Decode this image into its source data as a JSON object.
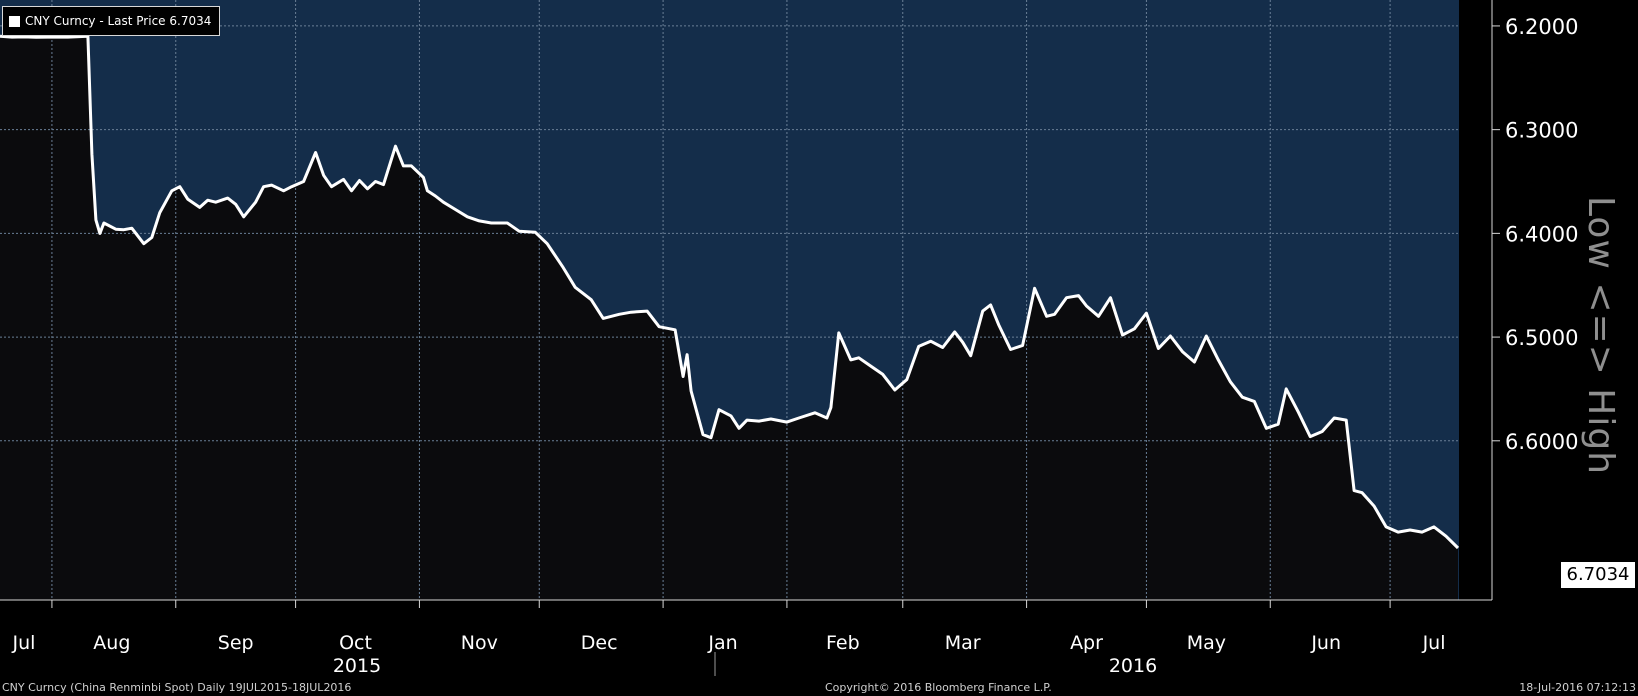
{
  "legend": {
    "series_name": "CNY Curncy",
    "label_text": "CNY Curncy - Last Price 6.7034"
  },
  "last_price_tag": "6.7034",
  "side_label": "Low <=> High",
  "footer": {
    "left": "CNY Curncy (China Renminbi Spot)  Daily 19JUL2015-18JUL2016",
    "center": "Copyright© 2016 Bloomberg Finance L.P.",
    "right": "18-Jul-2016 07:12:13"
  },
  "colors": {
    "background": "#000000",
    "upper_fill": "#142d4a",
    "lower_fill": "#0b0b0d",
    "line": "#ffffff",
    "grid": "#6a7f96",
    "axis_text": "#ffffff"
  },
  "chart_data": {
    "type": "line",
    "title": "",
    "xlabel": "",
    "ylabel": "",
    "y_inverted": true,
    "ylim": [
      6.175,
      6.7535
    ],
    "yticks": [
      "6.2000",
      "6.3000",
      "6.4000",
      "6.5000",
      "6.6000"
    ],
    "xticks": [
      "Jul",
      "Aug",
      "Sep",
      "Oct",
      "Nov",
      "Dec",
      "Jan",
      "Feb",
      "Mar",
      "Apr",
      "May",
      "Jun",
      "Jul"
    ],
    "year_labels": [
      "2015",
      "2016"
    ],
    "grid": true,
    "series": [
      {
        "name": "CNY Curncy",
        "x": [
          "2015-07-19",
          "2015-07-22",
          "2015-07-25",
          "2015-07-28",
          "2015-07-31",
          "2015-08-05",
          "2015-08-10",
          "2015-08-11",
          "2015-08-12",
          "2015-08-13",
          "2015-08-14",
          "2015-08-17",
          "2015-08-19",
          "2015-08-21",
          "2015-08-24",
          "2015-08-26",
          "2015-08-28",
          "2015-08-31",
          "2015-09-02",
          "2015-09-04",
          "2015-09-07",
          "2015-09-09",
          "2015-09-11",
          "2015-09-14",
          "2015-09-16",
          "2015-09-18",
          "2015-09-21",
          "2015-09-23",
          "2015-09-25",
          "2015-09-28",
          "2015-09-30",
          "2015-10-03",
          "2015-10-06",
          "2015-10-08",
          "2015-10-10",
          "2015-10-13",
          "2015-10-15",
          "2015-10-17",
          "2015-10-19",
          "2015-10-21",
          "2015-10-23",
          "2015-10-26",
          "2015-10-28",
          "2015-10-30",
          "2015-11-02",
          "2015-11-03",
          "2015-11-05",
          "2015-11-07",
          "2015-11-10",
          "2015-11-13",
          "2015-11-16",
          "2015-11-19",
          "2015-11-23",
          "2015-11-26",
          "2015-11-30",
          "2015-12-03",
          "2015-12-07",
          "2015-12-10",
          "2015-12-14",
          "2015-12-17",
          "2015-12-21",
          "2015-12-24",
          "2015-12-28",
          "2015-12-31",
          "2016-01-04",
          "2016-01-06",
          "2016-01-07",
          "2016-01-08",
          "2016-01-11",
          "2016-01-13",
          "2016-01-15",
          "2016-01-18",
          "2016-01-20",
          "2016-01-22",
          "2016-01-25",
          "2016-01-28",
          "2016-02-01",
          "2016-02-04",
          "2016-02-08",
          "2016-02-11",
          "2016-02-12",
          "2016-02-14",
          "2016-02-17",
          "2016-02-19",
          "2016-02-22",
          "2016-02-25",
          "2016-02-28",
          "2016-03-02",
          "2016-03-05",
          "2016-03-08",
          "2016-03-11",
          "2016-03-14",
          "2016-03-16",
          "2016-03-18",
          "2016-03-21",
          "2016-03-23",
          "2016-03-25",
          "2016-03-28",
          "2016-03-31",
          "2016-04-03",
          "2016-04-06",
          "2016-04-08",
          "2016-04-11",
          "2016-04-14",
          "2016-04-16",
          "2016-04-19",
          "2016-04-22",
          "2016-04-25",
          "2016-04-28",
          "2016-05-01",
          "2016-05-04",
          "2016-05-07",
          "2016-05-10",
          "2016-05-13",
          "2016-05-16",
          "2016-05-19",
          "2016-05-22",
          "2016-05-25",
          "2016-05-28",
          "2016-05-31",
          "2016-06-03",
          "2016-06-05",
          "2016-06-08",
          "2016-06-11",
          "2016-06-14",
          "2016-06-17",
          "2016-06-20",
          "2016-06-22",
          "2016-06-24",
          "2016-06-27",
          "2016-06-30",
          "2016-07-03",
          "2016-07-06",
          "2016-07-09",
          "2016-07-12",
          "2016-07-15",
          "2016-07-18"
        ],
        "values": [
          6.21,
          6.2108,
          6.2106,
          6.2109,
          6.2108,
          6.2108,
          6.21,
          6.3236,
          6.387,
          6.4,
          6.39,
          6.396,
          6.3965,
          6.395,
          6.41,
          6.404,
          6.38,
          6.359,
          6.355,
          6.367,
          6.375,
          6.368,
          6.37,
          6.366,
          6.372,
          6.384,
          6.37,
          6.355,
          6.3535,
          6.359,
          6.355,
          6.35,
          6.322,
          6.344,
          6.355,
          6.348,
          6.359,
          6.349,
          6.357,
          6.35,
          6.353,
          6.316,
          6.335,
          6.335,
          6.346,
          6.359,
          6.364,
          6.37,
          6.377,
          6.384,
          6.388,
          6.39,
          6.39,
          6.398,
          6.399,
          6.41,
          6.433,
          6.452,
          6.464,
          6.482,
          6.478,
          6.476,
          6.475,
          6.49,
          6.493,
          6.538,
          6.517,
          6.552,
          6.594,
          6.597,
          6.57,
          6.576,
          6.588,
          6.58,
          6.581,
          6.579,
          6.582,
          6.578,
          6.573,
          6.578,
          6.568,
          6.496,
          6.522,
          6.52,
          6.528,
          6.536,
          6.551,
          6.541,
          6.509,
          6.504,
          6.51,
          6.495,
          6.505,
          6.518,
          6.475,
          6.469,
          6.488,
          6.512,
          6.508,
          6.453,
          6.48,
          6.478,
          6.462,
          6.46,
          6.47,
          6.48,
          6.462,
          6.498,
          6.492,
          6.477,
          6.511,
          6.499,
          6.514,
          6.524,
          6.499,
          6.522,
          6.543,
          6.558,
          6.562,
          6.588,
          6.584,
          6.55,
          6.572,
          6.596,
          6.591,
          6.578,
          6.58,
          6.648,
          6.65,
          6.663,
          6.683,
          6.688,
          6.686,
          6.688,
          6.683,
          6.692,
          6.7034
        ]
      }
    ]
  }
}
